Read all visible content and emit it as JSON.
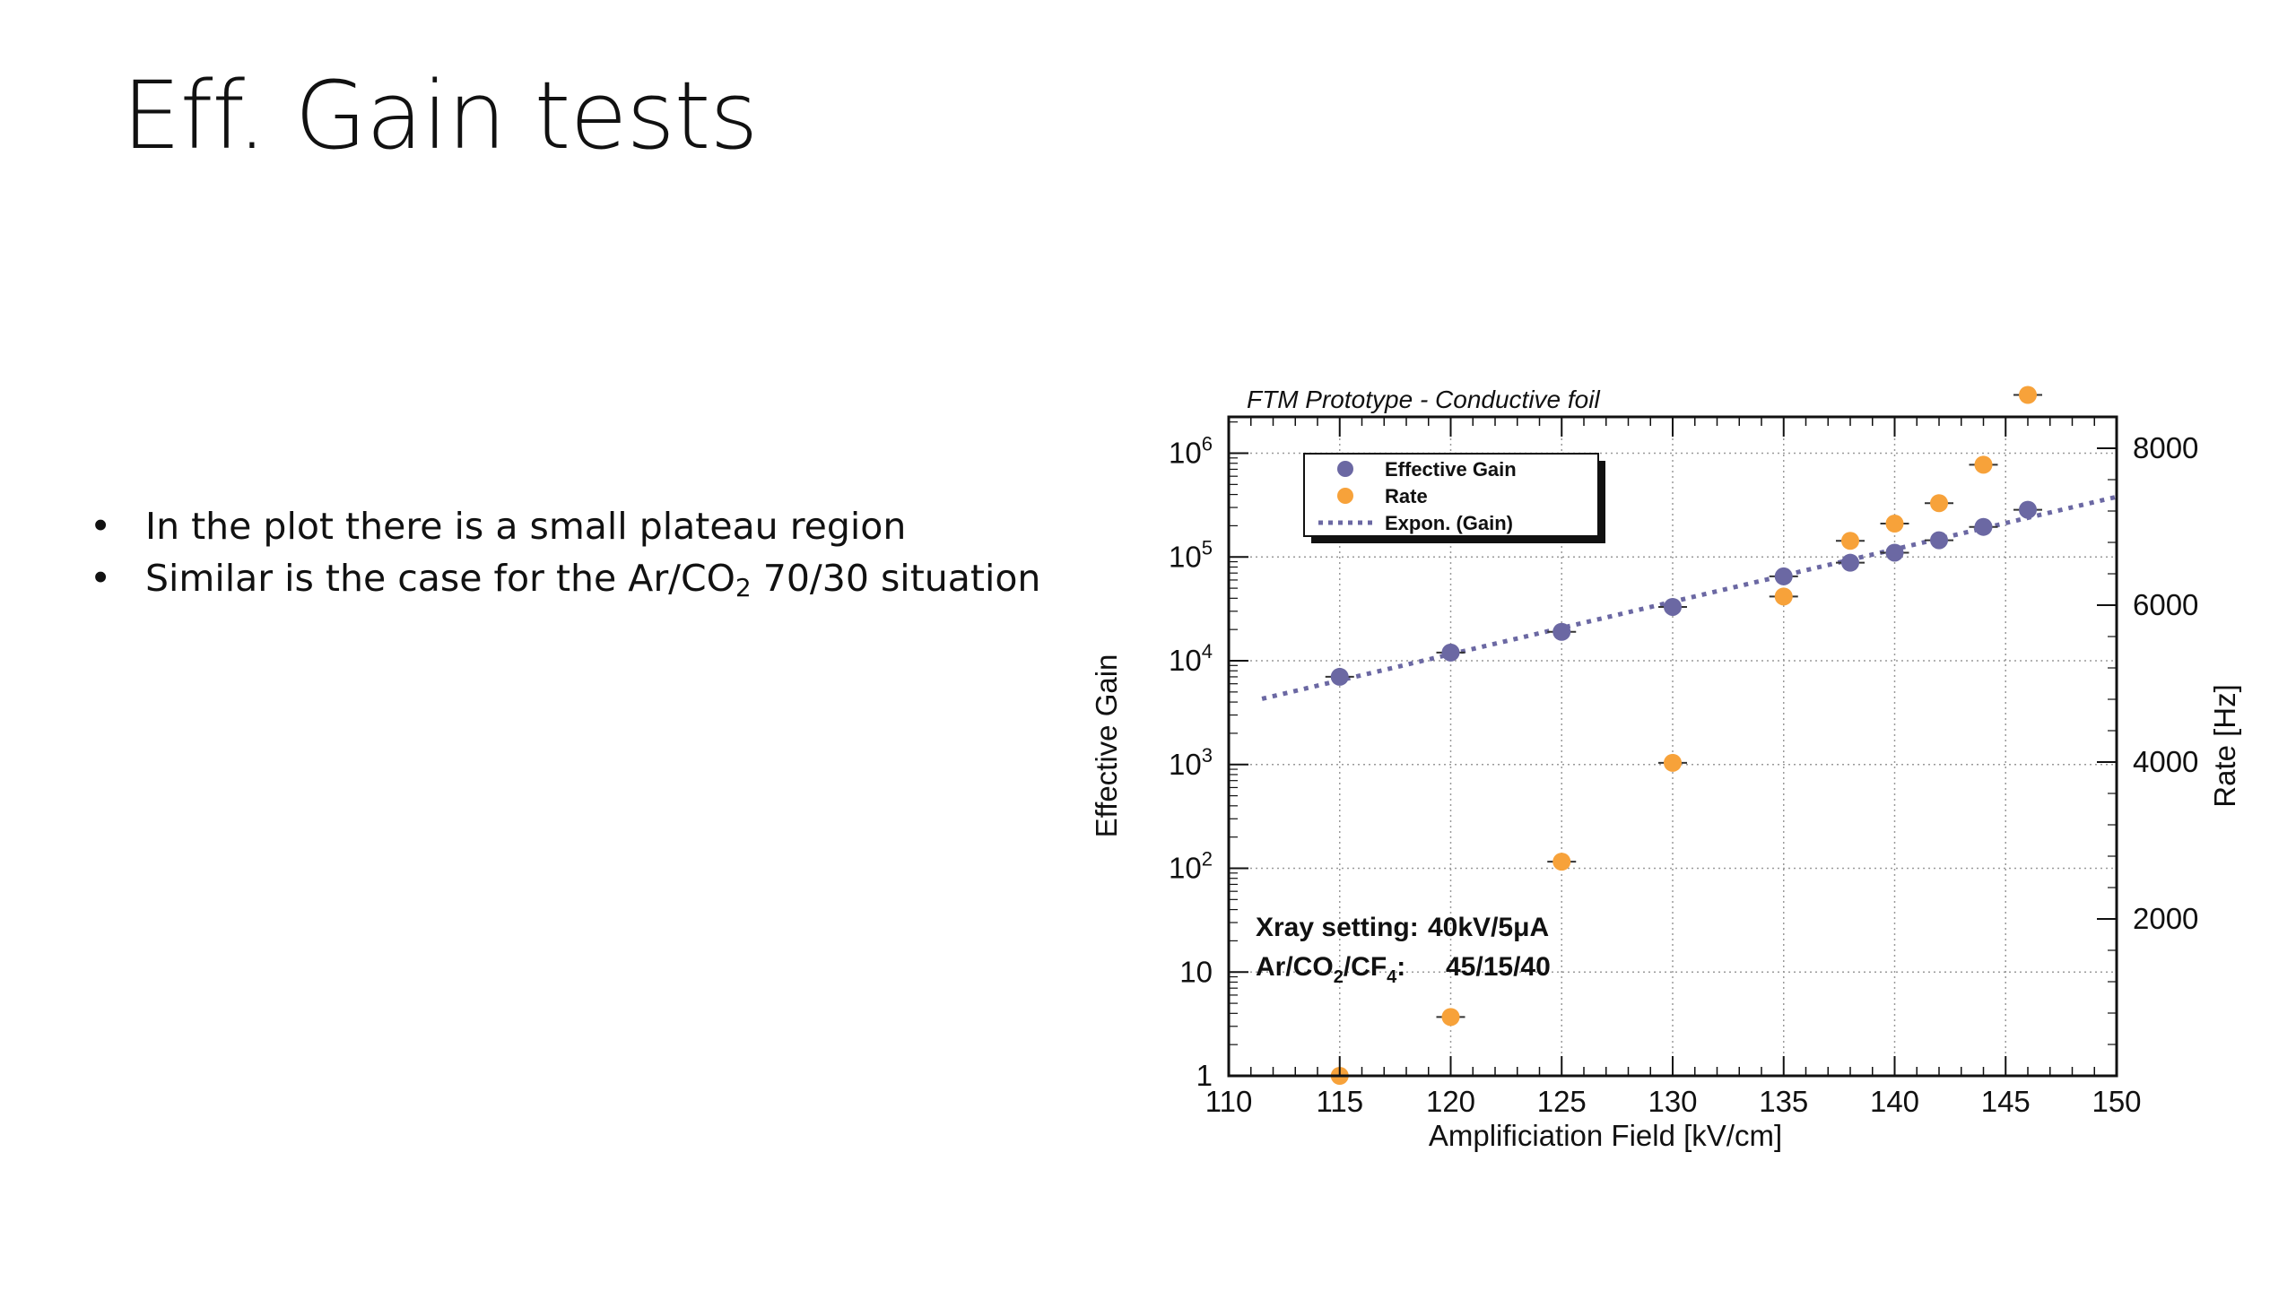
{
  "slide": {
    "title": "Eff. Gain tests",
    "bullets": [
      {
        "text": "In the plot there is a small plateau region"
      },
      {
        "text_before": "Similar is the case for the Ar/CO",
        "subscript": "2",
        "text_after": " 70/30 situation"
      }
    ]
  },
  "chart_data": {
    "type": "scatter",
    "title": "FTM Prototype - Conductive foil",
    "xlabel": "Amplificiation Field [kV/cm]",
    "ylabel": "Effective Gain",
    "y2label": "Rate [Hz]",
    "xlim": [
      110,
      150
    ],
    "ylim": [
      1,
      1000000
    ],
    "y_scale": "log",
    "y2lim": [
      0,
      8400
    ],
    "x_ticks": [
      110,
      115,
      120,
      125,
      130,
      135,
      140,
      145,
      150
    ],
    "y_ticks": [
      {
        "value": 1,
        "base": "1",
        "exp": ""
      },
      {
        "value": 10,
        "base": "10",
        "exp": ""
      },
      {
        "value": 100,
        "base": "10",
        "exp": "2"
      },
      {
        "value": 1000,
        "base": "10",
        "exp": "3"
      },
      {
        "value": 10000,
        "base": "10",
        "exp": "4"
      },
      {
        "value": 100000,
        "base": "10",
        "exp": "5"
      },
      {
        "value": 1000000,
        "base": "10",
        "exp": "6"
      }
    ],
    "y2_ticks": [
      2000,
      4000,
      6000,
      8000
    ],
    "grid": true,
    "legend_position": "top-left",
    "legend": [
      "Effective Gain",
      "Rate",
      "Expon. (Gain)"
    ],
    "colors": {
      "gain": "#6b68a3",
      "rate": "#f7a23a",
      "fit": "#6b68a3"
    },
    "series": [
      {
        "name": "Effective Gain",
        "axis": "left",
        "x": [
          115,
          120,
          125,
          130,
          135,
          138,
          140,
          142,
          144,
          146
        ],
        "y": [
          7000,
          12000,
          19000,
          33000,
          65000,
          88000,
          110000,
          145000,
          195000,
          285000
        ]
      },
      {
        "name": "Rate",
        "axis": "right",
        "x": [
          115,
          120,
          125,
          130,
          135,
          138,
          140,
          142,
          144,
          146
        ],
        "y": [
          0,
          750,
          2730,
          3990,
          6110,
          6820,
          7040,
          7300,
          7790,
          8680
        ]
      },
      {
        "name": "Expon. (Gain)",
        "axis": "left",
        "style": "dotted",
        "x": [
          111.5,
          150
        ],
        "y": [
          4300,
          380000
        ]
      }
    ],
    "annotations": [
      {
        "label": "Xray setting:",
        "value": "40kV/5μA"
      },
      {
        "label_parts": [
          "Ar/CO",
          "2",
          "/CF",
          "4",
          ":"
        ],
        "value": "45/15/40"
      }
    ]
  }
}
